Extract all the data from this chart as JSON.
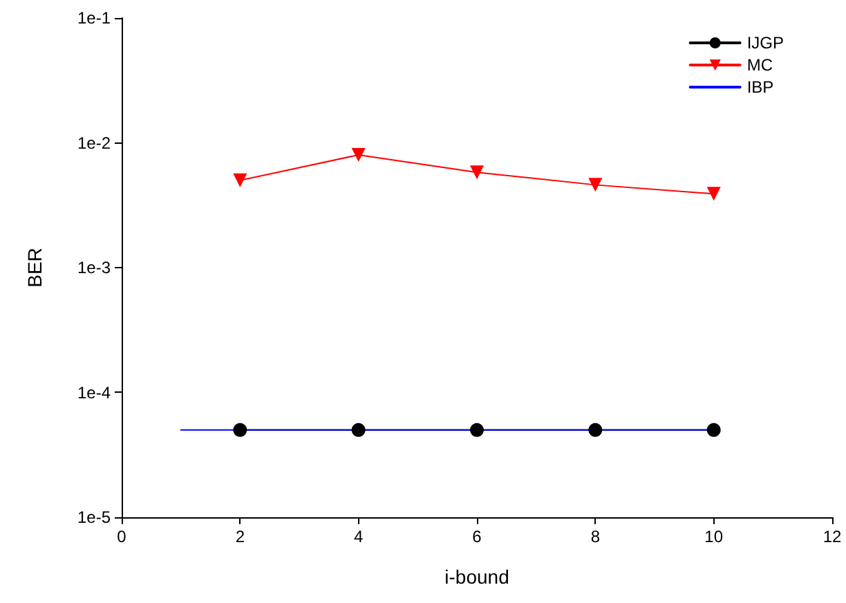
{
  "chart_data": {
    "type": "line",
    "xlabel": "i-bound",
    "ylabel": "BER",
    "log": "y",
    "grid": false,
    "legend": "top right",
    "xlim": [
      0,
      12
    ],
    "xticks": [
      0,
      2,
      4,
      6,
      8,
      10,
      12
    ],
    "ylim": [
      1e-05,
      0.1
    ],
    "yticks": [
      {
        "value": 1e-05,
        "label": "1e-5"
      },
      {
        "value": 0.0001,
        "label": "1e-4"
      },
      {
        "value": 0.001,
        "label": "1e-3"
      },
      {
        "value": 0.01,
        "label": "1e-2"
      },
      {
        "value": 0.1,
        "label": "1e-1"
      }
    ],
    "series": [
      {
        "name": "IJGP",
        "color": "#000000",
        "marker": "circle",
        "x": [
          2,
          4,
          6,
          8,
          10
        ],
        "values": [
          5e-05,
          5e-05,
          5e-05,
          5e-05,
          5e-05
        ]
      },
      {
        "name": "MC",
        "color": "#ff0000",
        "marker": "triangle",
        "x": [
          2,
          4,
          6,
          8,
          10
        ],
        "values": [
          0.005,
          0.008,
          0.0058,
          0.0046,
          0.0039
        ]
      },
      {
        "name": "IBP",
        "color": "#0000ff",
        "marker": "none",
        "x": [
          1,
          10
        ],
        "values": [
          5e-05,
          5e-05
        ]
      }
    ]
  }
}
